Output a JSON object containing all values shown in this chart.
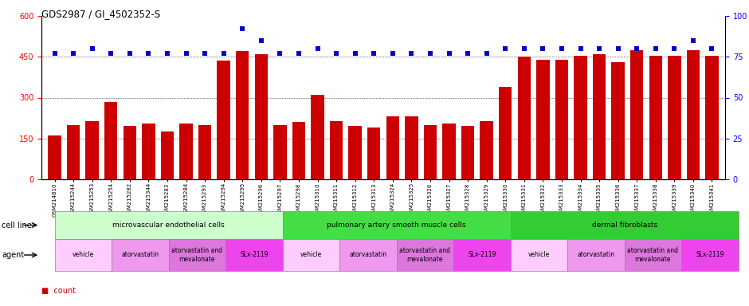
{
  "title": "GDS2987 / GI_4502352-S",
  "samples": [
    "GSM214810",
    "GSM215244",
    "GSM215253",
    "GSM215254",
    "GSM215282",
    "GSM215344",
    "GSM215283",
    "GSM215284",
    "GSM215293",
    "GSM215294",
    "GSM215295",
    "GSM215296",
    "GSM215297",
    "GSM215298",
    "GSM215310",
    "GSM215311",
    "GSM215312",
    "GSM215313",
    "GSM215324",
    "GSM215325",
    "GSM215326",
    "GSM215327",
    "GSM215328",
    "GSM215329",
    "GSM215330",
    "GSM215331",
    "GSM215332",
    "GSM215333",
    "GSM215334",
    "GSM215335",
    "GSM215336",
    "GSM215337",
    "GSM215338",
    "GSM215339",
    "GSM215340",
    "GSM215341"
  ],
  "counts": [
    160,
    200,
    215,
    285,
    195,
    205,
    175,
    205,
    200,
    435,
    470,
    460,
    200,
    210,
    310,
    215,
    195,
    190,
    230,
    230,
    200,
    205,
    195,
    215,
    340,
    450,
    440,
    440,
    455,
    460,
    430,
    475,
    455,
    455,
    475,
    455
  ],
  "percentiles": [
    77,
    77,
    80,
    77,
    77,
    77,
    77,
    77,
    77,
    77,
    92,
    85,
    77,
    77,
    80,
    77,
    77,
    77,
    77,
    77,
    77,
    77,
    77,
    77,
    80,
    80,
    80,
    80,
    80,
    80,
    80,
    80,
    80,
    80,
    85,
    80
  ],
  "bar_color": "#cc0000",
  "dot_color": "#0000cc",
  "ylim_left": [
    0,
    600
  ],
  "ylim_right": [
    0,
    100
  ],
  "yticks_left": [
    0,
    150,
    300,
    450,
    600
  ],
  "yticks_right": [
    0,
    25,
    50,
    75,
    100
  ],
  "cell_line_groups": [
    {
      "label": "microvascular endothelial cells",
      "start": 0,
      "end": 12,
      "color": "#ccffcc"
    },
    {
      "label": "pulmonary artery smooth muscle cells",
      "start": 12,
      "end": 24,
      "color": "#44dd44"
    },
    {
      "label": "dermal fibroblasts",
      "start": 24,
      "end": 36,
      "color": "#33cc33"
    }
  ],
  "agent_groups": [
    {
      "label": "vehicle",
      "start": 0,
      "end": 3,
      "color": "#ffccff"
    },
    {
      "label": "atorvastatin",
      "start": 3,
      "end": 6,
      "color": "#ee99ee"
    },
    {
      "label": "atorvastatin and\nmevalonate",
      "start": 6,
      "end": 9,
      "color": "#dd77dd"
    },
    {
      "label": "SLx-2119",
      "start": 9,
      "end": 12,
      "color": "#ee44ee"
    },
    {
      "label": "vehicle",
      "start": 12,
      "end": 15,
      "color": "#ffccff"
    },
    {
      "label": "atorvastatin",
      "start": 15,
      "end": 18,
      "color": "#ee99ee"
    },
    {
      "label": "atorvastatin and\nmevalonate",
      "start": 18,
      "end": 21,
      "color": "#dd77dd"
    },
    {
      "label": "SLx-2119",
      "start": 21,
      "end": 24,
      "color": "#ee44ee"
    },
    {
      "label": "vehicle",
      "start": 24,
      "end": 27,
      "color": "#ffccff"
    },
    {
      "label": "atorvastatin",
      "start": 27,
      "end": 30,
      "color": "#ee99ee"
    },
    {
      "label": "atorvastatin and\nmevalonate",
      "start": 30,
      "end": 33,
      "color": "#dd77dd"
    },
    {
      "label": "SLx-2119",
      "start": 33,
      "end": 36,
      "color": "#ee44ee"
    }
  ],
  "bg_color": "#ffffff"
}
